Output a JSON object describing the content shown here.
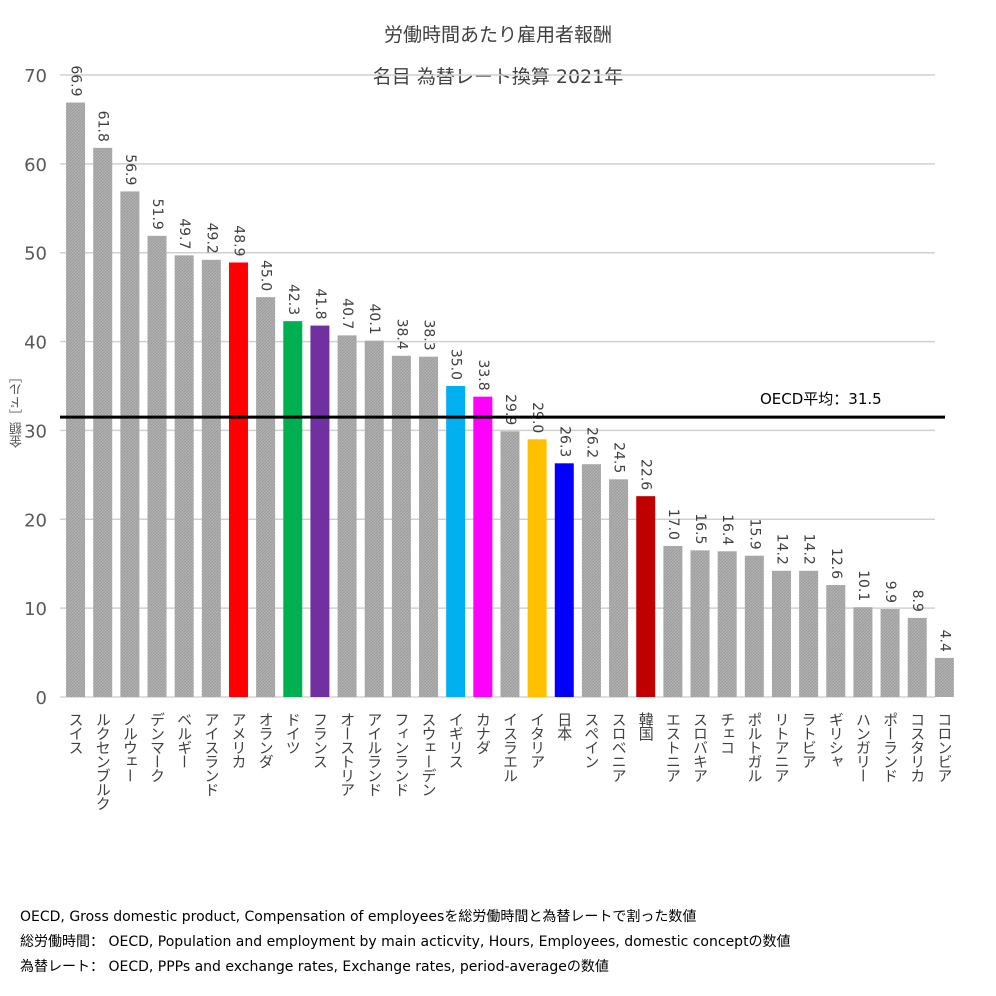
{
  "chart_data": {
    "type": "bar",
    "title": "労働時間あたり雇用者報酬",
    "subtitle": "名目 為替レート換算 2021年",
    "xlabel": "",
    "ylabel": "金額［ドル］",
    "ylim": [
      0,
      70
    ],
    "yticks": [
      0,
      10,
      20,
      30,
      40,
      50,
      60,
      70
    ],
    "grid": true,
    "categories": [
      "スイス",
      "ルクセンブルク",
      "ノルウェー",
      "デンマーク",
      "ベルギー",
      "アイスランド",
      "アメリカ",
      "オランダ",
      "ドイツ",
      "フランス",
      "オーストリア",
      "アイルランド",
      "フィンランド",
      "スウェーデン",
      "イギリス",
      "カナダ",
      "イスラエル",
      "イタリア",
      "日本",
      "スペイン",
      "スロベニア",
      "韓国",
      "エストニア",
      "スロバキア",
      "チェコ",
      "ポルトガル",
      "リトアニア",
      "ラトビア",
      "ギリシャ",
      "ハンガリー",
      "ポーランド",
      "コスタリカ",
      "コロンビア"
    ],
    "values": [
      66.9,
      61.8,
      56.9,
      51.9,
      49.7,
      49.2,
      48.9,
      45.0,
      42.3,
      41.8,
      40.7,
      40.1,
      38.4,
      38.3,
      35.0,
      33.8,
      29.9,
      29.0,
      26.3,
      26.2,
      24.5,
      22.6,
      17.0,
      16.5,
      16.4,
      15.9,
      14.2,
      14.2,
      12.6,
      10.1,
      9.9,
      8.9,
      4.4
    ],
    "value_labels": [
      "66.9",
      "61.8",
      "56.9",
      "51.9",
      "49.7",
      "49.2",
      "48.9",
      "45.0",
      "42.3",
      "41.8",
      "40.7",
      "40.1",
      "38.4",
      "38.3",
      "35.0",
      "33.8",
      "29.9",
      "29.0",
      "26.3",
      "26.2",
      "24.5",
      "22.6",
      "17.0",
      "16.5",
      "16.4",
      "15.9",
      "14.2",
      "14.2",
      "12.6",
      "10.1",
      "9.9",
      "8.9",
      "4.4"
    ],
    "default_color": "#a6a6a6",
    "highlight_colors": {
      "アメリカ": "#ff0000",
      "ドイツ": "#00b050",
      "フランス": "#7030a0",
      "イギリス": "#00b0f0",
      "カナダ": "#ff00ff",
      "イタリア": "#ffc000",
      "日本": "#0000ff",
      "韓国": "#c00000"
    },
    "reference_line": {
      "label": "OECD平均：31.5",
      "value": 31.5,
      "color": "#000000"
    }
  },
  "notes": [
    "OECD, Gross domestic product, Compensation of employeesを総労働時間と為替レートで割った数値",
    "総労働時間： OECD, Population and employment by main acticvity, Hours, Employees, domestic conceptの数値",
    "為替レート： OECD, PPPs and exchange rates, Exchange rates, period-averageの数値"
  ]
}
